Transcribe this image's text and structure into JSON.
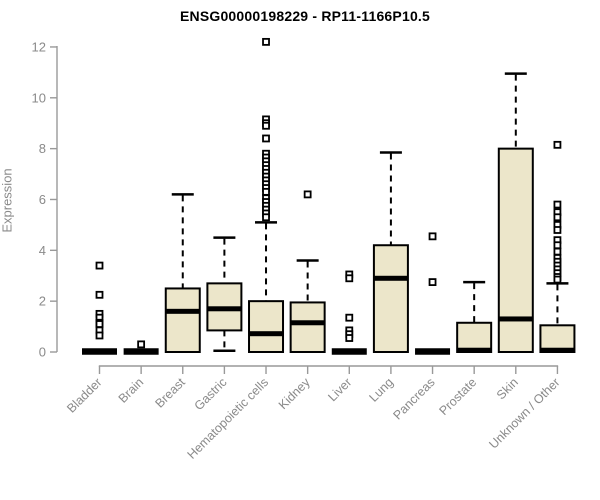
{
  "chart_data": {
    "type": "boxplot",
    "title": "ENSG00000198229 - RP11-1166P10.5",
    "ylabel": "Expression",
    "xlabel": "",
    "ylim": [
      0,
      12
    ],
    "yticks": [
      0,
      2,
      4,
      6,
      8,
      10,
      12
    ],
    "legend": "none",
    "grid": false,
    "colors": {
      "box_fill": "#ECE6CA",
      "box_stroke": "#000000",
      "axis_line": "#999999",
      "axis_text": "#8A8A8A",
      "title_text": "#000000"
    },
    "categories": [
      "Bladder",
      "Brain",
      "Breast",
      "Gastric",
      "Hematopoietic cells",
      "Kidney",
      "Liver",
      "Lung",
      "Pancreas",
      "Prostate",
      "Skin",
      "Unknown / Other"
    ],
    "boxes": [
      {
        "category": "Bladder",
        "flat": true,
        "median": 0,
        "outliers": [
          3.4,
          2.25,
          1.5,
          1.35,
          1.15,
          1.1,
          0.85,
          0.65
        ]
      },
      {
        "category": "Brain",
        "flat": true,
        "median": 0,
        "outliers": [
          0.3
        ]
      },
      {
        "category": "Breast",
        "flat": false,
        "q1": 0,
        "median": 1.6,
        "q3": 2.5,
        "whisker_low": 0,
        "whisker_high": 6.2,
        "outliers": []
      },
      {
        "category": "Gastric",
        "flat": false,
        "q1": 0.85,
        "median": 1.7,
        "q3": 2.7,
        "whisker_low": 0.05,
        "whisker_high": 4.5,
        "outliers": []
      },
      {
        "category": "Hematopoietic cells",
        "flat": false,
        "q1": 0,
        "median": 0.72,
        "q3": 2.0,
        "whisker_low": 0,
        "whisker_high": 5.1,
        "outliers": [
          12.2,
          9.15,
          9.0,
          8.9,
          8.4,
          7.8,
          7.65,
          7.5,
          7.35,
          7.2,
          7.05,
          6.9,
          6.75,
          6.6,
          6.45,
          6.3,
          6.05,
          5.9,
          5.75,
          5.6,
          5.45,
          5.3
        ]
      },
      {
        "category": "Kidney",
        "flat": false,
        "q1": 0,
        "median": 1.15,
        "q3": 1.95,
        "whisker_low": 0,
        "whisker_high": 3.6,
        "outliers": [
          6.2
        ]
      },
      {
        "category": "Liver",
        "flat": true,
        "median": 0,
        "outliers": [
          3.05,
          2.9,
          1.35,
          0.85,
          0.7,
          0.55
        ]
      },
      {
        "category": "Lung",
        "flat": false,
        "q1": 0,
        "median": 2.9,
        "q3": 4.2,
        "whisker_low": 0,
        "whisker_high": 7.85,
        "outliers": []
      },
      {
        "category": "Pancreas",
        "flat": true,
        "median": 0,
        "outliers": [
          4.55,
          2.75
        ]
      },
      {
        "category": "Prostate",
        "flat": false,
        "q1": 0,
        "median": 0.07,
        "q3": 1.15,
        "whisker_low": 0,
        "whisker_high": 2.75,
        "outliers": []
      },
      {
        "category": "Skin",
        "flat": false,
        "q1": 0,
        "median": 1.3,
        "q3": 8.0,
        "whisker_low": 0,
        "whisker_high": 10.95,
        "outliers": []
      },
      {
        "category": "Unknown / Other",
        "flat": false,
        "q1": 0,
        "median": 0.07,
        "q3": 1.05,
        "whisker_low": 0,
        "whisker_high": 2.7,
        "outliers": [
          8.15,
          5.8,
          5.5,
          5.3,
          5.0,
          4.8,
          4.4,
          4.2,
          3.95,
          3.7,
          3.55,
          3.4,
          3.25,
          3.1,
          2.95,
          2.85
        ]
      }
    ]
  }
}
